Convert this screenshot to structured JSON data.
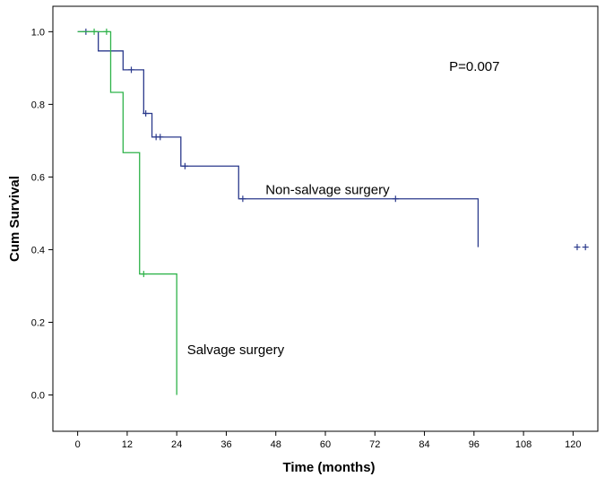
{
  "chart_data": {
    "type": "line",
    "subtype": "kaplan-meier-step",
    "xlabel": "Time (months)",
    "ylabel": "Cum Survival",
    "xlim": [
      -6,
      126
    ],
    "ylim": [
      -0.1,
      1.07
    ],
    "xticks": [
      0,
      12,
      24,
      36,
      48,
      60,
      72,
      84,
      96,
      108,
      120
    ],
    "yticks": [
      0.0,
      0.2,
      0.4,
      0.6,
      0.8,
      1.0
    ],
    "ytick_labels": [
      "0.0",
      "0.2",
      "0.4",
      "0.6",
      "0.8",
      "1.0"
    ],
    "grid": false,
    "annotations": [
      {
        "id": "pvalue",
        "text": "P=0.007",
        "x": 90,
        "y": 0.905
      },
      {
        "id": "nonsalvage",
        "text": "Non-salvage surgery",
        "x": 45.5,
        "y": 0.565
      },
      {
        "id": "salvage",
        "text": "Salvage surgery",
        "x": 26.5,
        "y": 0.125
      }
    ],
    "series": [
      {
        "name": "Non-salvage surgery",
        "color": "#2b3a8c",
        "steps": [
          [
            0,
            1.0
          ],
          [
            5,
            0.947
          ],
          [
            11,
            0.895
          ],
          [
            16,
            0.775
          ],
          [
            18,
            0.71
          ],
          [
            25,
            0.63
          ],
          [
            39,
            0.54
          ],
          [
            97,
            0.407
          ]
        ],
        "end_x": 97,
        "censored": [
          [
            2,
            1.0
          ],
          [
            13,
            0.895
          ],
          [
            16.5,
            0.775
          ],
          [
            19,
            0.71
          ],
          [
            20,
            0.71
          ],
          [
            26,
            0.63
          ],
          [
            40,
            0.54
          ],
          [
            77,
            0.54
          ],
          [
            121,
            0.407
          ],
          [
            123,
            0.407
          ]
        ]
      },
      {
        "name": "Salvage surgery",
        "color": "#2fb34a",
        "steps": [
          [
            0,
            1.0
          ],
          [
            8,
            0.833
          ],
          [
            11,
            0.667
          ],
          [
            15,
            0.333
          ],
          [
            24,
            0.0
          ]
        ],
        "end_x": 24,
        "censored": [
          [
            4,
            1.0
          ],
          [
            7,
            1.0
          ],
          [
            16,
            0.333
          ]
        ]
      }
    ]
  }
}
